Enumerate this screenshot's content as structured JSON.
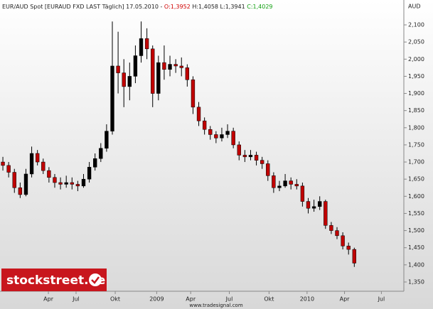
{
  "chart_data": {
    "type": "candlestick",
    "title": "EUR/AUD Spot [EURAUD FXD LAST Täglich] 17.05.2010 -",
    "open_label": "O:1,3952",
    "high_low_label": "H:1,4058 L:1,3941",
    "close_label": "C:1,4029",
    "y_axis_label": "AUD",
    "logo": "stockstreet.de",
    "footer": "www.tradesignal.com",
    "up_color": "#000000",
    "down_color": "#c00000",
    "open": [
      1.7,
      1.69,
      1.67,
      1.625,
      1.605,
      1.665,
      1.725,
      1.7,
      1.675,
      1.655,
      1.64,
      1.635,
      1.64,
      1.635,
      1.63,
      1.65,
      1.685,
      1.71,
      1.74,
      1.79,
      1.98,
      1.96,
      1.92,
      1.95,
      2.01,
      2.06,
      2.03,
      1.9,
      1.99,
      1.97,
      1.985,
      1.98,
      1.975,
      1.94,
      1.86,
      1.82,
      1.795,
      1.78,
      1.77,
      1.78,
      1.79,
      1.75,
      1.72,
      1.715,
      1.72,
      1.705,
      1.695,
      1.66,
      1.625,
      1.63,
      1.645,
      1.635,
      1.63,
      1.585,
      1.565,
      1.57,
      1.585,
      1.515,
      1.5,
      1.485,
      1.455,
      1.445
    ],
    "high": [
      1.715,
      1.7,
      1.68,
      1.64,
      1.68,
      1.745,
      1.735,
      1.71,
      1.685,
      1.665,
      1.655,
      1.66,
      1.655,
      1.645,
      1.665,
      1.7,
      1.725,
      1.755,
      1.81,
      2.11,
      2.08,
      2.0,
      1.99,
      2.04,
      2.11,
      2.09,
      2.04,
      2.01,
      2.04,
      2.01,
      2.0,
      2.005,
      1.985,
      1.95,
      1.875,
      1.83,
      1.805,
      1.79,
      1.8,
      1.81,
      1.8,
      1.76,
      1.735,
      1.735,
      1.73,
      1.715,
      1.705,
      1.67,
      1.645,
      1.665,
      1.655,
      1.65,
      1.64,
      1.595,
      1.59,
      1.6,
      1.59,
      1.525,
      1.51,
      1.495,
      1.465,
      1.45
    ],
    "low": [
      1.675,
      1.655,
      1.61,
      1.595,
      1.6,
      1.655,
      1.69,
      1.665,
      1.64,
      1.625,
      1.62,
      1.625,
      1.62,
      1.615,
      1.625,
      1.64,
      1.675,
      1.7,
      1.73,
      1.78,
      1.9,
      1.86,
      1.88,
      1.93,
      1.99,
      2.0,
      1.86,
      1.88,
      1.94,
      1.95,
      1.96,
      1.95,
      1.92,
      1.84,
      1.805,
      1.78,
      1.765,
      1.755,
      1.76,
      1.77,
      1.74,
      1.705,
      1.7,
      1.705,
      1.69,
      1.68,
      1.645,
      1.61,
      1.615,
      1.625,
      1.62,
      1.62,
      1.57,
      1.55,
      1.555,
      1.56,
      1.505,
      1.49,
      1.475,
      1.445,
      1.43,
      1.394
    ],
    "close": [
      1.69,
      1.67,
      1.625,
      1.605,
      1.665,
      1.725,
      1.7,
      1.675,
      1.655,
      1.64,
      1.635,
      1.64,
      1.635,
      1.63,
      1.65,
      1.685,
      1.71,
      1.74,
      1.79,
      1.98,
      1.96,
      1.92,
      1.95,
      2.01,
      2.06,
      2.03,
      1.9,
      1.99,
      1.97,
      1.985,
      1.98,
      1.975,
      1.94,
      1.86,
      1.82,
      1.795,
      1.78,
      1.77,
      1.78,
      1.79,
      1.75,
      1.72,
      1.715,
      1.72,
      1.705,
      1.695,
      1.66,
      1.625,
      1.63,
      1.645,
      1.635,
      1.63,
      1.585,
      1.565,
      1.57,
      1.585,
      1.515,
      1.5,
      1.485,
      1.455,
      1.445,
      1.405
    ],
    "xlim": [
      -0.5,
      69.6
    ],
    "xticks": [
      {
        "value": 7.9,
        "label": "Apr"
      },
      {
        "value": 12.7,
        "label": "Jul"
      },
      {
        "value": 19.5,
        "label": "Okt"
      },
      {
        "value": 26.7,
        "label": "2009"
      },
      {
        "value": 32.6,
        "label": "Apr"
      },
      {
        "value": 39.3,
        "label": "Jul"
      },
      {
        "value": 46.2,
        "label": "Okt"
      },
      {
        "value": 52.8,
        "label": "2010"
      },
      {
        "value": 59.3,
        "label": "Apr"
      },
      {
        "value": 65.7,
        "label": "Jul"
      }
    ],
    "ylim": [
      1.323,
      2.156
    ],
    "yticks": [
      {
        "value": 1.35,
        "label": "1,350"
      },
      {
        "value": 1.4,
        "label": "1,400"
      },
      {
        "value": 1.45,
        "label": "1,450"
      },
      {
        "value": 1.5,
        "label": "1,500"
      },
      {
        "value": 1.55,
        "label": "1,550"
      },
      {
        "value": 1.6,
        "label": "1,600"
      },
      {
        "value": 1.65,
        "label": "1,650"
      },
      {
        "value": 1.7,
        "label": "1,700"
      },
      {
        "value": 1.75,
        "label": "1,750"
      },
      {
        "value": 1.8,
        "label": "1,800"
      },
      {
        "value": 1.85,
        "label": "1,850"
      },
      {
        "value": 1.9,
        "label": "1,900"
      },
      {
        "value": 1.95,
        "label": "1,950"
      },
      {
        "value": 2.0,
        "label": "2,000"
      },
      {
        "value": 2.05,
        "label": "2,050"
      },
      {
        "value": 2.1,
        "label": "2,100"
      }
    ]
  }
}
